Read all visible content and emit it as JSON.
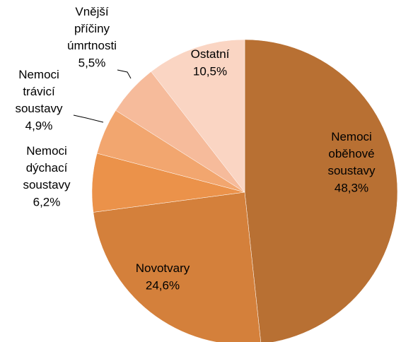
{
  "chart_data": {
    "type": "pie",
    "categories": [
      "Nemoci oběhové soustavy",
      "Novotvary",
      "Nemoci dýchací soustavy",
      "Nemoci trávicí soustavy",
      "Vnější příčiny úmrtnosti",
      "Ostatní"
    ],
    "values": [
      48.3,
      24.6,
      6.2,
      4.9,
      5.5,
      10.5
    ],
    "value_labels": [
      "48,3%",
      "24,6%",
      "6,2%",
      "4,9%",
      "5,5%",
      "10,5%"
    ],
    "colors": [
      "#b87033",
      "#d4803b",
      "#eb924a",
      "#f2a66f",
      "#f6bb9b",
      "#fad5c3"
    ]
  }
}
